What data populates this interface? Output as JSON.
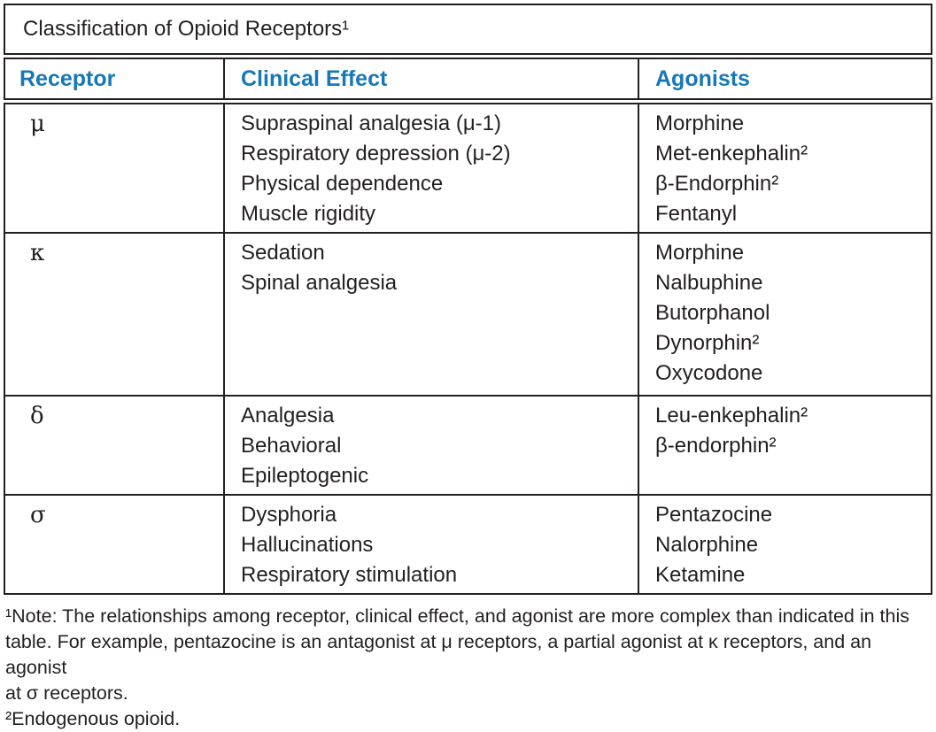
{
  "title": "Classification of Opioid Receptors¹",
  "table": {
    "columns": [
      "Receptor",
      "Clinical Effect",
      "Agonists"
    ],
    "rows": [
      {
        "receptor": "μ",
        "effects": [
          "Supraspinal analgesia (μ-1)",
          "Respiratory depression (μ-2)",
          "Physical dependence",
          "Muscle rigidity"
        ],
        "agonists": [
          "Morphine",
          "Met-enkephalin²",
          "β-Endorphin²",
          "Fentanyl"
        ]
      },
      {
        "receptor": "κ",
        "effects": [
          "Sedation",
          "Spinal analgesia"
        ],
        "agonists": [
          "Morphine",
          "Nalbuphine",
          "Butorphanol",
          "Dynorphin²",
          "Oxycodone"
        ]
      },
      {
        "receptor": "δ",
        "effects": [
          "Analgesia",
          "Behavioral",
          "Epileptogenic"
        ],
        "agonists": [
          "Leu-enkephalin²",
          "β-endorphin²"
        ]
      },
      {
        "receptor": "σ",
        "effects": [
          "Dysphoria",
          "Hallucinations",
          "Respiratory stimulation"
        ],
        "agonists": [
          "Pentazocine",
          "Nalorphine",
          "Ketamine"
        ]
      }
    ]
  },
  "footnotes": {
    "lines": [
      "¹Note: The relationships among receptor, clinical effect, and agonist are more complex than indicated in this",
      "table. For example, pentazocine is an antagonist at μ receptors, a partial agonist at κ receptors, and an agonist",
      "at σ receptors.",
      "²Endogenous opioid."
    ]
  },
  "colors": {
    "header_text": "#1778b8",
    "body_text": "#231f20",
    "border": "#231f20"
  }
}
